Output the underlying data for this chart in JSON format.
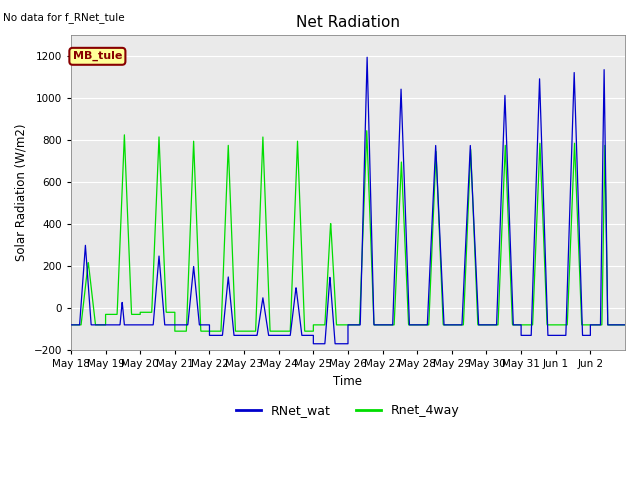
{
  "title": "Net Radiation",
  "ylabel": "Solar Radiation (W/m2)",
  "xlabel": "Time",
  "top_left_text": "No data for f_RNet_tule",
  "legend_label": "MB_tule",
  "ylim": [
    -200,
    1300
  ],
  "yticks": [
    -200,
    0,
    200,
    400,
    600,
    800,
    1000,
    1200
  ],
  "series_blue": "RNet_wat",
  "series_green": "Rnet_4way",
  "color_blue": "#0000cc",
  "color_green": "#00dd00",
  "bg_color": "#e8e8e8",
  "legend_box_color": "#ffff99",
  "legend_box_edge": "#880000",
  "days": [
    "May 18",
    "May 19",
    "May 20",
    "May 21",
    "May 22",
    "May 23",
    "May 24",
    "May 25",
    "May 26",
    "May 27",
    "May 28",
    "May 29",
    "May 30",
    "May 31",
    "Jun 1",
    "Jun 2"
  ]
}
